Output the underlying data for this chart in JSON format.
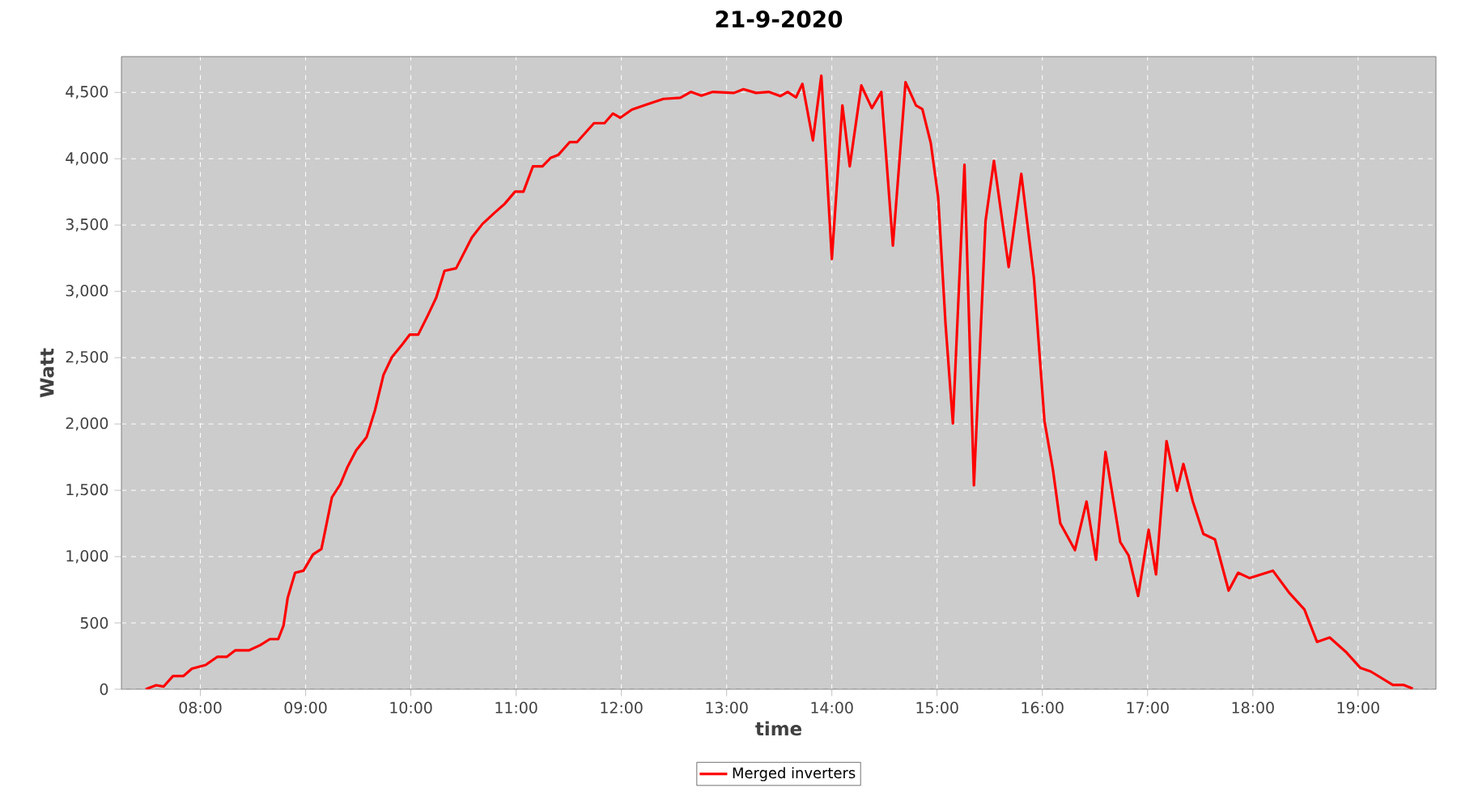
{
  "chart_data": {
    "type": "line",
    "title": "21-9-2020",
    "xlabel": "time",
    "ylabel": "Watt",
    "xlim": [
      7.25,
      19.74
    ],
    "ylim": [
      0,
      4770
    ],
    "xticks": [
      {
        "value": 8,
        "label": "08:00"
      },
      {
        "value": 9,
        "label": "09:00"
      },
      {
        "value": 10,
        "label": "10:00"
      },
      {
        "value": 11,
        "label": "11:00"
      },
      {
        "value": 12,
        "label": "12:00"
      },
      {
        "value": 13,
        "label": "13:00"
      },
      {
        "value": 14,
        "label": "14:00"
      },
      {
        "value": 15,
        "label": "15:00"
      },
      {
        "value": 16,
        "label": "16:00"
      },
      {
        "value": 17,
        "label": "17:00"
      },
      {
        "value": 18,
        "label": "18:00"
      },
      {
        "value": 19,
        "label": "19:00"
      }
    ],
    "yticks": [
      0,
      500,
      {
        "value": 1000,
        "label": "1,000"
      },
      {
        "value": 1500,
        "label": "1,500"
      },
      {
        "value": 2000,
        "label": "2,000"
      },
      {
        "value": 2500,
        "label": "2,500"
      },
      {
        "value": 3000,
        "label": "3,000"
      },
      {
        "value": 3500,
        "label": "3,500"
      },
      {
        "value": 4000,
        "label": "4,000"
      },
      {
        "value": 4500,
        "label": "4,500"
      }
    ],
    "grid": true,
    "legend": "bottom",
    "marker": "none",
    "line_style": "solid",
    "series": [
      {
        "name": "Merged inverters",
        "color": "#ff0000",
        "x": [
          7.48,
          7.58,
          7.65,
          7.74,
          7.84,
          7.92,
          8.05,
          8.16,
          8.25,
          8.33,
          8.46,
          8.57,
          8.66,
          8.74,
          8.79,
          8.83,
          8.9,
          8.98,
          9.07,
          9.15,
          9.19,
          9.25,
          9.33,
          9.4,
          9.48,
          9.58,
          9.66,
          9.74,
          9.82,
          9.92,
          9.99,
          10.07,
          10.16,
          10.24,
          10.32,
          10.43,
          10.58,
          10.68,
          10.79,
          10.89,
          10.99,
          11.07,
          11.16,
          11.25,
          11.33,
          11.4,
          11.51,
          11.58,
          11.74,
          11.84,
          11.92,
          11.99,
          12.1,
          12.25,
          12.4,
          12.56,
          12.66,
          12.76,
          12.87,
          13.07,
          13.16,
          13.28,
          13.4,
          13.51,
          13.58,
          13.66,
          13.72,
          13.82,
          13.9,
          14.0,
          14.1,
          14.17,
          14.28,
          14.38,
          14.47,
          14.58,
          14.7,
          14.8,
          14.86,
          14.94,
          15.01,
          15.08,
          15.15,
          15.26,
          15.35,
          15.46,
          15.54,
          15.68,
          15.8,
          15.92,
          16.02,
          16.1,
          16.17,
          16.31,
          16.42,
          16.51,
          16.6,
          16.74,
          16.82,
          16.91,
          17.01,
          17.08,
          17.18,
          17.28,
          17.34,
          17.43,
          17.53,
          17.64,
          17.77,
          17.86,
          17.97,
          18.19,
          18.35,
          18.49,
          18.61,
          18.73,
          18.89,
          19.02,
          19.12,
          19.33,
          19.43,
          19.52
        ],
        "values": [
          0,
          30,
          20,
          100,
          100,
          155,
          183,
          244,
          244,
          293,
          293,
          333,
          378,
          378,
          480,
          690,
          878,
          894,
          1016,
          1057,
          1211,
          1447,
          1545,
          1679,
          1801,
          1902,
          2106,
          2370,
          2504,
          2601,
          2674,
          2674,
          2817,
          2951,
          3155,
          3174,
          3406,
          3508,
          3589,
          3659,
          3752,
          3752,
          3943,
          3943,
          4008,
          4028,
          4126,
          4126,
          4268,
          4268,
          4341,
          4309,
          4370,
          4411,
          4451,
          4460,
          4504,
          4476,
          4504,
          4496,
          4524,
          4496,
          4504,
          4472,
          4504,
          4463,
          4565,
          4138,
          4626,
          3244,
          4402,
          3943,
          4552,
          4382,
          4504,
          3345,
          4577,
          4402,
          4374,
          4118,
          3711,
          2756,
          2004,
          3955,
          1537,
          3528,
          3984,
          3183,
          3886,
          3101,
          2024,
          1659,
          1252,
          1049,
          1415,
          976,
          1789,
          1110,
          1008,
          703,
          1203,
          866,
          1870,
          1496,
          1699,
          1415,
          1171,
          1130,
          744,
          878,
          838,
          894,
          723,
          601,
          357,
          390,
          277,
          162,
          134,
          33,
          33,
          4
        ]
      }
    ]
  }
}
